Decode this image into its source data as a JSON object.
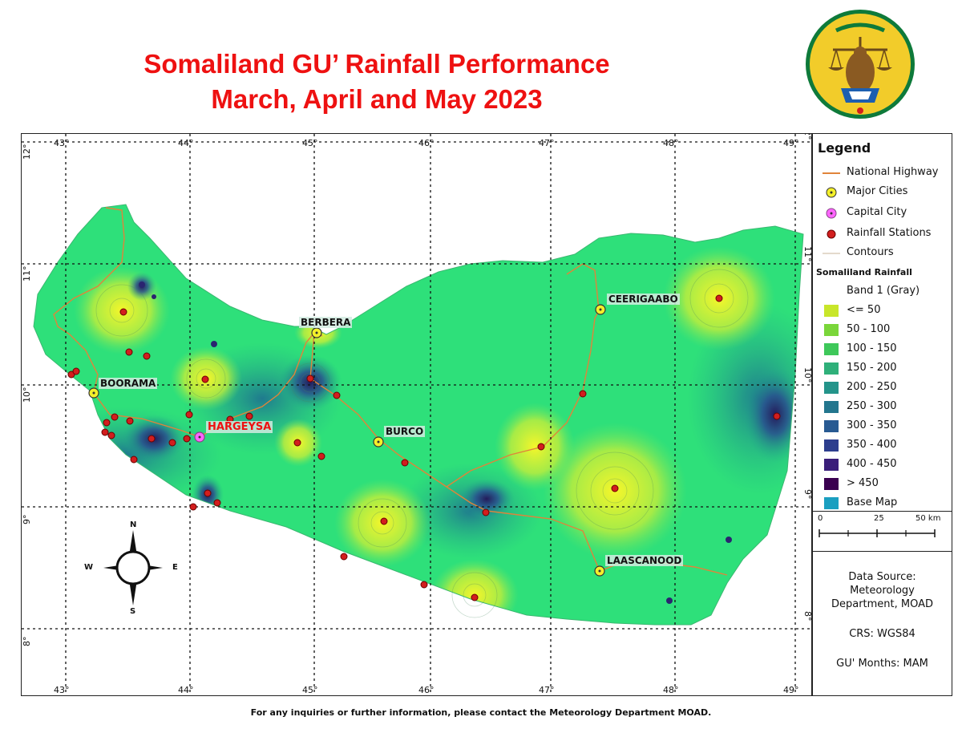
{
  "header": {
    "title_line1": "Somaliland GU’ Rainfall Performance",
    "title_line2": "March, April and May 2023"
  },
  "emblem": {
    "name": "somaliland-coat-of-arms",
    "primary_color": "#f2cc2a",
    "border_color": "#0e7a3a"
  },
  "map": {
    "longitude_labels": [
      "43°",
      "44°",
      "45°",
      "46°",
      "47°",
      "48°",
      "49°"
    ],
    "latitude_labels": [
      "12°",
      "11°",
      "10°",
      "9°",
      "8°"
    ],
    "colors": {
      "base": "#2ee07a",
      "low": "#e8f23a",
      "high": "#2a3a8c",
      "highway": "#e0843a",
      "station": "#d21e1e",
      "capital": "#ff55ff"
    },
    "cities": [
      {
        "name": "BERBERA",
        "type": "major"
      },
      {
        "name": "CEERIGAABO",
        "type": "major"
      },
      {
        "name": "BOORAMA",
        "type": "major"
      },
      {
        "name": "HARGEYSA",
        "type": "capital"
      },
      {
        "name": "BURCO",
        "type": "major"
      },
      {
        "name": "LAASCANOOD",
        "type": "major"
      }
    ]
  },
  "compass": {
    "n": "N",
    "s": "S",
    "e": "E",
    "w": "W"
  },
  "legend": {
    "title": "Legend",
    "items": [
      {
        "label": "National Highway",
        "icon": "highway-line"
      },
      {
        "label": "Major Cities",
        "icon": "major-city-marker"
      },
      {
        "label": "Capital City",
        "icon": "capital-city-marker"
      },
      {
        "label": "Rainfall Stations",
        "icon": "rainfall-station-marker"
      },
      {
        "label": "Contours",
        "icon": "contour-line"
      }
    ],
    "raster_title": "Somaliland Rainfall",
    "band_label": "Band 1 (Gray)",
    "classes": [
      {
        "label": "<= 50",
        "color": "#c8e62a"
      },
      {
        "label": "50 - 100",
        "color": "#7ad63a"
      },
      {
        "label": "100 - 150",
        "color": "#3ec85a"
      },
      {
        "label": "150 - 200",
        "color": "#2fb07a"
      },
      {
        "label": "200 - 250",
        "color": "#24948a"
      },
      {
        "label": "250 - 300",
        "color": "#23768e"
      },
      {
        "label": "300 - 350",
        "color": "#285a92"
      },
      {
        "label": "350 - 400",
        "color": "#2d3e8e"
      },
      {
        "label": "400 - 450",
        "color": "#3a1e7a"
      },
      {
        "label": "> 450",
        "color": "#3a0050"
      },
      {
        "label": "Base Map",
        "color": "#1a9fc0"
      }
    ]
  },
  "scalebar": {
    "labels": [
      "0",
      "25",
      "50 km"
    ]
  },
  "info": {
    "data_source_label": "Data Source:",
    "data_source_line1": "Meteorology",
    "data_source_line2": "Department, MOAD",
    "crs": "CRS: WGS84",
    "months": "GU' Months: MAM"
  },
  "footer": {
    "text": "For any inquiries or further information, please contact the Meteorology Department MOAD."
  }
}
